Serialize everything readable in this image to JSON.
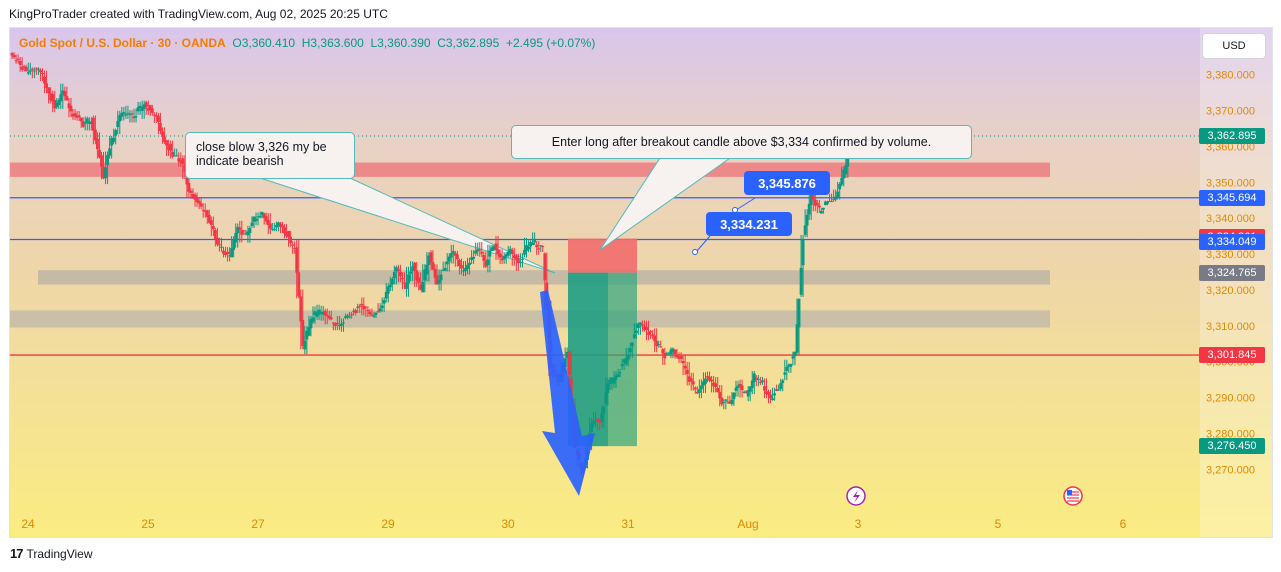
{
  "header": {
    "credit": "KingProTrader created with TradingView.com, Aug 02, 2025 20:25 UTC"
  },
  "legend": {
    "symbol": "Gold Spot / U.S. Dollar · 30 · OANDA",
    "open": "O3,360.410",
    "high": "H3,363.600",
    "low": "L3,360.390",
    "close": "C3,362.895",
    "change": "+2.495 (+0.07%)"
  },
  "currency_button": "USD",
  "annotations": {
    "bearish_note": "close blow 3,326 my be indicate bearish",
    "long_note": "Enter long after breakout candle above $3,334 confirmed by volume.",
    "tag_upper": "3,345.876",
    "tag_lower": "3,334.231"
  },
  "price_labels": [
    {
      "text": "3,362.895",
      "value": 3362.895,
      "color": "#089981"
    },
    {
      "text": "3,345.694",
      "value": 3345.694,
      "color": "#2962ff"
    },
    {
      "text": "3,334.261",
      "value": 3334.261,
      "color": "#f23645"
    },
    {
      "text": "3,334.049",
      "value": 3334.049,
      "color": "#2962ff"
    },
    {
      "text": "3,324.765",
      "value": 3324.765,
      "color": "#787b86"
    },
    {
      "text": "3,301.845",
      "value": 3301.845,
      "color": "#f23645"
    },
    {
      "text": "3,276.450",
      "value": 3276.45,
      "color": "#089981"
    }
  ],
  "footer": {
    "brand": "TradingView"
  },
  "colors": {
    "up": "#089981",
    "down": "#f23645",
    "line_blue": "#2962ff",
    "line_red": "#f23645",
    "accent_blue": "#2962ff"
  },
  "chart_data": {
    "type": "candlestick",
    "x_tick_labels": [
      "24",
      "25",
      "27",
      "29",
      "30",
      "31",
      "Aug",
      "3",
      "5",
      "6"
    ],
    "y_tick_labels": [
      "3,380.000",
      "3,370.000",
      "3,360.000",
      "3,350.000",
      "3,340.000",
      "3,330.000",
      "3,320.000",
      "3,310.000",
      "3,300.000",
      "3,290.000",
      "3,280.000",
      "3,270.000"
    ],
    "y_ticks": [
      3380,
      3370,
      3360,
      3350,
      3340,
      3330,
      3320,
      3310,
      3300,
      3290,
      3280,
      3270
    ],
    "ylim": [
      3262,
      3393
    ],
    "last_price": 3362.895,
    "horizontal_lines": [
      {
        "value": 3345.694,
        "color": "#2962ff"
      },
      {
        "value": 3334.049,
        "color": "#2962ff"
      },
      {
        "value": 3301.845,
        "color": "#f23645"
      }
    ],
    "zones": [
      {
        "low": 3351.5,
        "high": 3355.5,
        "color": "#ee7d80"
      },
      {
        "low": 3321.5,
        "high": 3325.5,
        "color": "#bdb6a4"
      },
      {
        "low": 3309.5,
        "high": 3314.3,
        "color": "#c3bba8"
      }
    ],
    "short_position": {
      "entry": 3324.8,
      "stop": 3334.3,
      "target": 3276.45
    },
    "price_path": [
      [
        0,
        3386
      ],
      [
        4,
        3381
      ],
      [
        7,
        3382
      ],
      [
        11,
        3371
      ],
      [
        13,
        3375
      ],
      [
        15,
        3370
      ],
      [
        18,
        3366
      ],
      [
        20,
        3368
      ],
      [
        23,
        3352
      ],
      [
        25,
        3362
      ],
      [
        27,
        3369
      ],
      [
        30,
        3368
      ],
      [
        33,
        3372
      ],
      [
        36,
        3368
      ],
      [
        38,
        3362
      ],
      [
        40,
        3358
      ],
      [
        42,
        3356
      ],
      [
        44,
        3348
      ],
      [
        46,
        3344
      ],
      [
        48,
        3342
      ],
      [
        51,
        3333
      ],
      [
        52,
        3331
      ],
      [
        54,
        3330
      ],
      [
        56,
        3338
      ],
      [
        58,
        3335
      ],
      [
        60,
        3340
      ],
      [
        62,
        3342
      ],
      [
        64,
        3337
      ],
      [
        66,
        3338
      ],
      [
        68,
        3336
      ],
      [
        70,
        3331
      ],
      [
        72,
        3304
      ],
      [
        74,
        3312
      ],
      [
        77,
        3315
      ],
      [
        80,
        3310
      ],
      [
        83,
        3312
      ],
      [
        86,
        3316
      ],
      [
        89,
        3313
      ],
      [
        92,
        3317
      ],
      [
        95,
        3326
      ],
      [
        97,
        3321
      ],
      [
        99,
        3327
      ],
      [
        101,
        3320
      ],
      [
        103,
        3330
      ],
      [
        105,
        3322
      ],
      [
        107,
        3327
      ],
      [
        109,
        3331
      ],
      [
        111,
        3325
      ],
      [
        113,
        3328
      ],
      [
        115,
        3332
      ],
      [
        117,
        3327
      ],
      [
        119,
        3333
      ],
      [
        121,
        3328
      ],
      [
        123,
        3332
      ],
      [
        125,
        3327
      ],
      [
        127,
        3332
      ],
      [
        129,
        3333
      ],
      [
        131,
        3331
      ],
      [
        133,
        3298
      ],
      [
        135,
        3295
      ],
      [
        137,
        3302
      ],
      [
        139,
        3275
      ],
      [
        141,
        3270
      ],
      [
        143,
        3283
      ],
      [
        145,
        3284
      ],
      [
        147,
        3293
      ],
      [
        149,
        3296
      ],
      [
        151,
        3300
      ],
      [
        153,
        3306
      ],
      [
        155,
        3311
      ],
      [
        157,
        3308
      ],
      [
        159,
        3305
      ],
      [
        161,
        3302
      ],
      [
        163,
        3304
      ],
      [
        165,
        3300
      ],
      [
        167,
        3295
      ],
      [
        169,
        3292
      ],
      [
        171,
        3296
      ],
      [
        173,
        3294
      ],
      [
        175,
        3288
      ],
      [
        177,
        3289
      ],
      [
        179,
        3293
      ],
      [
        181,
        3291
      ],
      [
        183,
        3296
      ],
      [
        185,
        3294
      ],
      [
        187,
        3290
      ],
      [
        189,
        3293
      ],
      [
        191,
        3298
      ],
      [
        193,
        3302
      ],
      [
        195,
        3335
      ],
      [
        197,
        3347
      ],
      [
        199,
        3342
      ],
      [
        201,
        3344
      ],
      [
        203,
        3346
      ],
      [
        205,
        3353
      ],
      [
        207,
        3361
      ],
      [
        208,
        3362.9
      ]
    ],
    "x_path_range": [
      0,
      208
    ]
  }
}
